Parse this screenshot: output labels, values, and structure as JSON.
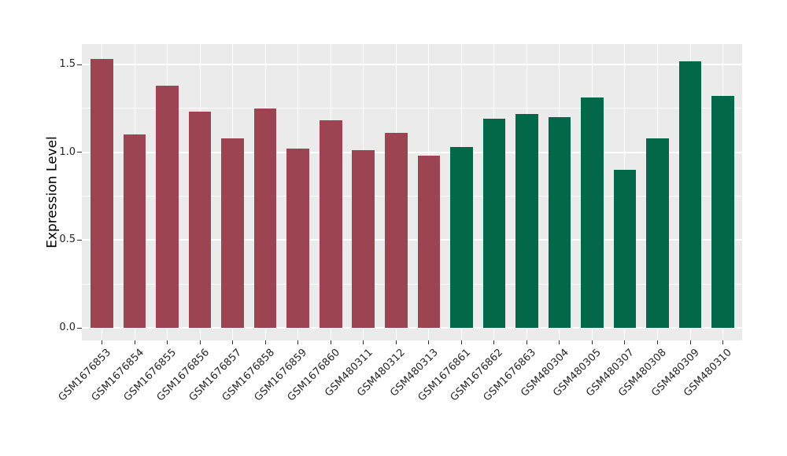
{
  "chart_data": {
    "type": "bar",
    "title": "",
    "xlabel": "",
    "ylabel": "Expression Level",
    "ylim": [
      0,
      1.62
    ],
    "yticks": [
      0.0,
      0.5,
      1.0,
      1.5
    ],
    "ytick_labels": [
      "0.0",
      "0.5",
      "1.0",
      "1.5"
    ],
    "yminor_ticks": [
      0.25,
      0.75,
      1.25
    ],
    "grid": "major and minor horizontal white lines, vertical white line at each category",
    "legend_position": "none",
    "categories": [
      "GSM1676853",
      "GSM1676854",
      "GSM1676855",
      "GSM1676856",
      "GSM1676857",
      "GSM1676858",
      "GSM1676859",
      "GSM1676860",
      "GSM480311",
      "GSM480312",
      "GSM480313",
      "GSM1676861",
      "GSM1676862",
      "GSM1676863",
      "GSM480304",
      "GSM480305",
      "GSM480307",
      "GSM480308",
      "GSM480309",
      "GSM480310"
    ],
    "values": [
      1.53,
      1.1,
      1.38,
      1.23,
      1.08,
      1.25,
      1.02,
      1.18,
      1.01,
      1.11,
      0.98,
      1.03,
      1.19,
      1.22,
      1.2,
      1.31,
      0.9,
      1.08,
      1.52,
      1.32
    ],
    "bar_groups": [
      "group1",
      "group1",
      "group1",
      "group1",
      "group1",
      "group1",
      "group1",
      "group1",
      "group1",
      "group1",
      "group1",
      "group2",
      "group2",
      "group2",
      "group2",
      "group2",
      "group2",
      "group2",
      "group2",
      "group2"
    ],
    "colors": {
      "group1": "#9C4452",
      "group2": "#03684A",
      "panel_background": "#EBEBEB",
      "gridline": "#FFFFFF",
      "tick_mark": "#333333",
      "axis_text": "#262626",
      "axis_title": "#000000",
      "figure_background": "#FFFFFF"
    }
  }
}
